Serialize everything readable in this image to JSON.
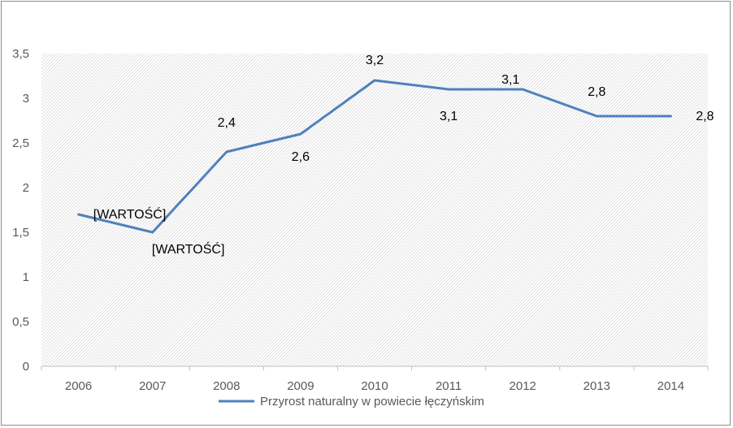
{
  "chart_data": {
    "type": "line",
    "title": "",
    "xlabel": "",
    "ylabel": "",
    "categories": [
      "2006",
      "2007",
      "2008",
      "2009",
      "2010",
      "2011",
      "2012",
      "2013",
      "2014"
    ],
    "series": [
      {
        "name": "Przyrost naturalny w powiecie łęczyńskim",
        "values": [
          1.7,
          1.5,
          2.4,
          2.6,
          3.2,
          3.1,
          3.1,
          2.8,
          2.8
        ],
        "color": "#4f81bd",
        "data_labels": [
          "[WARTOŚĆ]",
          "[WARTOŚĆ]",
          "2,4",
          "2,6",
          "3,2",
          "3,1",
          "3,1",
          "2,8",
          "2,8"
        ]
      }
    ],
    "ylim": [
      0,
      3.5
    ],
    "yticks": [
      0,
      0.5,
      1,
      1.5,
      2,
      2.5,
      3,
      3.5
    ],
    "ytick_labels": [
      "0",
      "0,5",
      "1",
      "1,5",
      "2",
      "2,5",
      "3",
      "3,5"
    ],
    "grid": false,
    "plot_area_pattern": "light diagonal hatch",
    "legend_position": "bottom"
  }
}
